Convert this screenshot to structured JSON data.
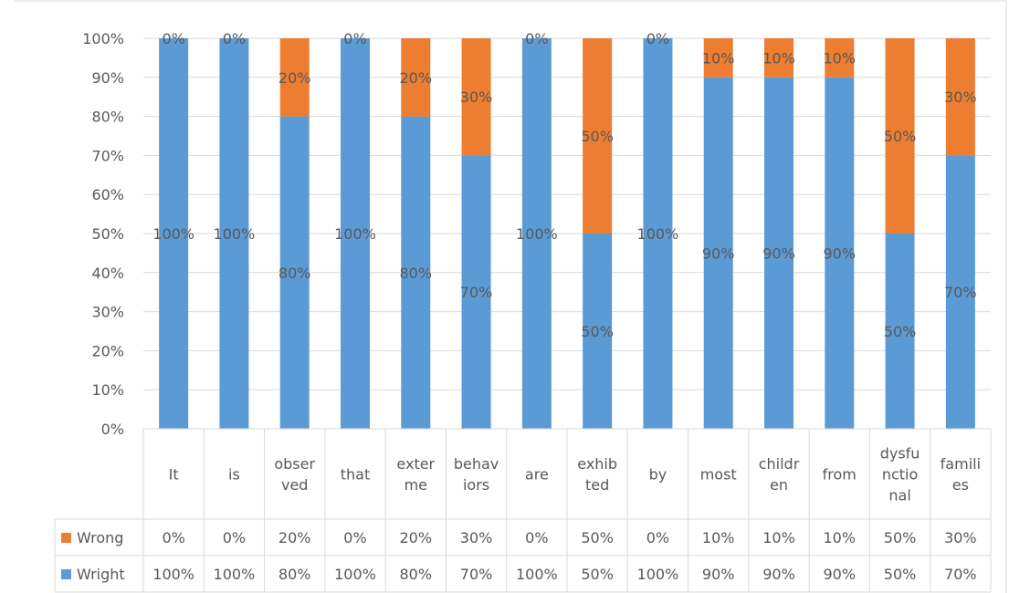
{
  "chart_data": {
    "type": "bar",
    "stacked": true,
    "percent_stacked": true,
    "categories": [
      [
        "It"
      ],
      [
        "is"
      ],
      [
        "obser",
        "ved"
      ],
      [
        "that"
      ],
      [
        "exter",
        "me"
      ],
      [
        "behav",
        "iors"
      ],
      [
        "are"
      ],
      [
        "exhib",
        "ted"
      ],
      [
        "by"
      ],
      [
        "most"
      ],
      [
        "childr",
        "en"
      ],
      [
        "from"
      ],
      [
        "dysfu",
        "nctio",
        "nal"
      ],
      [
        "famili",
        "es"
      ]
    ],
    "series": [
      {
        "name": "Wright",
        "color": "#5b9bd5",
        "values": [
          100,
          100,
          80,
          100,
          80,
          70,
          100,
          50,
          100,
          90,
          90,
          90,
          50,
          70
        ]
      },
      {
        "name": "Wrong",
        "color": "#ed7d31",
        "values": [
          0,
          0,
          20,
          0,
          20,
          30,
          0,
          50,
          0,
          10,
          10,
          10,
          50,
          30
        ]
      }
    ],
    "data_labels": {
      "Wright": [
        "100%",
        "100%",
        "80%",
        "100%",
        "80%",
        "70%",
        "100%",
        "50%",
        "100%",
        "90%",
        "90%",
        "90%",
        "50%",
        "70%"
      ],
      "Wrong": [
        "0%",
        "0%",
        "20%",
        "0%",
        "20%",
        "30%",
        "0%",
        "50%",
        "0%",
        "10%",
        "10%",
        "10%",
        "50%",
        "30%"
      ]
    },
    "y_ticks": [
      "0%",
      "10%",
      "20%",
      "30%",
      "40%",
      "50%",
      "60%",
      "70%",
      "80%",
      "90%",
      "100%"
    ],
    "ylim": [
      0,
      100
    ],
    "grid": true,
    "legend": "data-table-rows",
    "title": "",
    "xlabel": "",
    "ylabel": ""
  }
}
